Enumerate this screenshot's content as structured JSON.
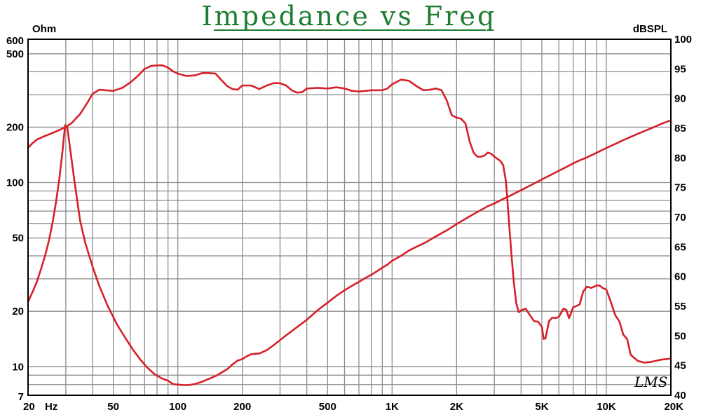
{
  "chart_data": {
    "type": "line",
    "title": "Impedance vs Freq",
    "left_axis_unit": "Ohm",
    "right_axis_unit": "dBSPL",
    "x_unit_label": "Hz",
    "signature": "LMS",
    "xscale": "log",
    "xlim": [
      20,
      20000
    ],
    "x_ticks": [
      {
        "value": 20,
        "label": "20"
      },
      {
        "value": 50,
        "label": "50"
      },
      {
        "value": 100,
        "label": "100"
      },
      {
        "value": 200,
        "label": "200"
      },
      {
        "value": 500,
        "label": "500"
      },
      {
        "value": 1000,
        "label": "1K"
      },
      {
        "value": 2000,
        "label": "2K"
      },
      {
        "value": 5000,
        "label": "5K"
      },
      {
        "value": 10000,
        "label": "10K"
      },
      {
        "value": 20000,
        "label": "20K"
      }
    ],
    "left_scale": "log",
    "left_ylim": [
      7,
      600
    ],
    "left_ticks": [
      600,
      500,
      200,
      100,
      50,
      20,
      10,
      7
    ],
    "right_ylim": [
      40,
      100
    ],
    "right_ticks": [
      100,
      95,
      90,
      85,
      80,
      75,
      70,
      65,
      60,
      55,
      50,
      45,
      40
    ],
    "grid": true,
    "colors": {
      "curves": "#d6202a",
      "grid": "#8c8c8c",
      "title": "#1e7d32",
      "frame": "#000000"
    },
    "series": [
      {
        "axis": "right",
        "points": [
          [
            20,
            81.7
          ],
          [
            21,
            82.5
          ],
          [
            22,
            83.1
          ],
          [
            24,
            83.7
          ],
          [
            26,
            84.2
          ],
          [
            28,
            84.7
          ],
          [
            30,
            85.2
          ],
          [
            32,
            85.9
          ],
          [
            35,
            87.4
          ],
          [
            38,
            89.4
          ],
          [
            40,
            90.8
          ],
          [
            43,
            91.5
          ],
          [
            46,
            91.4
          ],
          [
            50,
            91.3
          ],
          [
            55,
            91.8
          ],
          [
            60,
            92.7
          ],
          [
            65,
            93.8
          ],
          [
            70,
            95.0
          ],
          [
            75,
            95.5
          ],
          [
            80,
            95.6
          ],
          [
            85,
            95.6
          ],
          [
            90,
            95.2
          ],
          [
            95,
            94.6
          ],
          [
            100,
            94.2
          ],
          [
            110,
            93.8
          ],
          [
            120,
            93.9
          ],
          [
            130,
            94.3
          ],
          [
            140,
            94.3
          ],
          [
            150,
            94.2
          ],
          [
            160,
            93.1
          ],
          [
            170,
            92.1
          ],
          [
            180,
            91.6
          ],
          [
            190,
            91.5
          ],
          [
            200,
            92.2
          ],
          [
            220,
            92.2
          ],
          [
            240,
            91.6
          ],
          [
            260,
            92.2
          ],
          [
            280,
            92.6
          ],
          [
            300,
            92.6
          ],
          [
            320,
            92.2
          ],
          [
            340,
            91.4
          ],
          [
            360,
            91.0
          ],
          [
            380,
            91.1
          ],
          [
            400,
            91.7
          ],
          [
            450,
            91.8
          ],
          [
            500,
            91.7
          ],
          [
            550,
            91.9
          ],
          [
            600,
            91.7
          ],
          [
            650,
            91.3
          ],
          [
            700,
            91.2
          ],
          [
            750,
            91.3
          ],
          [
            800,
            91.4
          ],
          [
            900,
            91.4
          ],
          [
            950,
            91.7
          ],
          [
            1000,
            92.4
          ],
          [
            1100,
            93.2
          ],
          [
            1200,
            93.0
          ],
          [
            1300,
            92.1
          ],
          [
            1400,
            91.4
          ],
          [
            1500,
            91.5
          ],
          [
            1600,
            91.7
          ],
          [
            1700,
            91.4
          ],
          [
            1800,
            89.7
          ],
          [
            1900,
            87.2
          ],
          [
            2000,
            86.8
          ],
          [
            2100,
            86.6
          ],
          [
            2200,
            85.8
          ],
          [
            2300,
            82.8
          ],
          [
            2400,
            80.9
          ],
          [
            2500,
            80.2
          ],
          [
            2600,
            80.2
          ],
          [
            2700,
            80.4
          ],
          [
            2800,
            80.9
          ],
          [
            2900,
            80.7
          ],
          [
            3000,
            80.2
          ],
          [
            3200,
            79.5
          ],
          [
            3300,
            78.8
          ],
          [
            3400,
            76.0
          ],
          [
            3500,
            70.0
          ],
          [
            3600,
            64.0
          ],
          [
            3700,
            59.0
          ],
          [
            3800,
            55.5
          ],
          [
            3900,
            54.0
          ],
          [
            4000,
            54.3
          ],
          [
            4200,
            54.6
          ],
          [
            4400,
            53.5
          ],
          [
            4600,
            52.5
          ],
          [
            4800,
            52.4
          ],
          [
            5000,
            51.5
          ],
          [
            5100,
            49.5
          ],
          [
            5200,
            49.6
          ],
          [
            5400,
            52.5
          ],
          [
            5600,
            53.1
          ],
          [
            5800,
            53.0
          ],
          [
            6000,
            53.2
          ],
          [
            6300,
            54.6
          ],
          [
            6500,
            54.4
          ],
          [
            6700,
            53.0
          ],
          [
            7000,
            54.8
          ],
          [
            7500,
            55.3
          ],
          [
            7800,
            57.5
          ],
          [
            8100,
            58.3
          ],
          [
            8500,
            58.1
          ],
          [
            9000,
            58.5
          ],
          [
            9300,
            58.5
          ],
          [
            9600,
            58.1
          ],
          [
            10000,
            57.8
          ],
          [
            10500,
            55.7
          ],
          [
            11000,
            53.5
          ],
          [
            11500,
            52.5
          ],
          [
            12000,
            50.2
          ],
          [
            12500,
            49.5
          ],
          [
            13000,
            46.8
          ],
          [
            14000,
            45.8
          ],
          [
            15000,
            45.5
          ],
          [
            16000,
            45.6
          ],
          [
            17000,
            45.8
          ],
          [
            18000,
            46.0
          ],
          [
            19000,
            46.1
          ],
          [
            20000,
            46.2
          ]
        ]
      },
      {
        "axis": "left",
        "points": [
          [
            20,
            22.5
          ],
          [
            21,
            25.5
          ],
          [
            22,
            29
          ],
          [
            23,
            34
          ],
          [
            24,
            40
          ],
          [
            25,
            48
          ],
          [
            26,
            60
          ],
          [
            27,
            78
          ],
          [
            28,
            105
          ],
          [
            29,
            150
          ],
          [
            29.8,
            205
          ],
          [
            30.5,
            200
          ],
          [
            31.5,
            150
          ],
          [
            33,
            100
          ],
          [
            35,
            62
          ],
          [
            37,
            47
          ],
          [
            40,
            35
          ],
          [
            43,
            27.5
          ],
          [
            47,
            21.5
          ],
          [
            52,
            17
          ],
          [
            57,
            14.3
          ],
          [
            62,
            12.3
          ],
          [
            67,
            10.9
          ],
          [
            72,
            9.9
          ],
          [
            78,
            9.1
          ],
          [
            85,
            8.6
          ],
          [
            90,
            8.4
          ],
          [
            95,
            8.05
          ],
          [
            100,
            8.0
          ],
          [
            107,
            7.95
          ],
          [
            112,
            7.95
          ],
          [
            120,
            8.05
          ],
          [
            130,
            8.3
          ],
          [
            140,
            8.6
          ],
          [
            150,
            8.9
          ],
          [
            160,
            9.3
          ],
          [
            170,
            9.7
          ],
          [
            180,
            10.3
          ],
          [
            190,
            10.8
          ],
          [
            200,
            11.0
          ],
          [
            210,
            11.4
          ],
          [
            220,
            11.7
          ],
          [
            240,
            11.8
          ],
          [
            260,
            12.3
          ],
          [
            280,
            13.1
          ],
          [
            320,
            14.8
          ],
          [
            360,
            16.4
          ],
          [
            400,
            18.0
          ],
          [
            450,
            20.3
          ],
          [
            500,
            22.3
          ],
          [
            550,
            24.3
          ],
          [
            600,
            26.0
          ],
          [
            650,
            27.5
          ],
          [
            700,
            28.9
          ],
          [
            750,
            30.3
          ],
          [
            800,
            31.6
          ],
          [
            850,
            33.0
          ],
          [
            900,
            34.5
          ],
          [
            950,
            35.8
          ],
          [
            1000,
            37.6
          ],
          [
            1100,
            40.0
          ],
          [
            1200,
            42.8
          ],
          [
            1300,
            44.8
          ],
          [
            1400,
            46.6
          ],
          [
            1500,
            48.8
          ],
          [
            1600,
            51.0
          ],
          [
            1800,
            55.0
          ],
          [
            2000,
            59.5
          ],
          [
            2200,
            63.5
          ],
          [
            2400,
            67.4
          ],
          [
            2600,
            71.0
          ],
          [
            2800,
            74.5
          ],
          [
            3000,
            77.0
          ],
          [
            3300,
            81.5
          ],
          [
            3600,
            85.5
          ],
          [
            4000,
            91.0
          ],
          [
            4500,
            97.5
          ],
          [
            5000,
            104
          ],
          [
            5500,
            110
          ],
          [
            6000,
            116
          ],
          [
            6500,
            121.5
          ],
          [
            7000,
            127
          ],
          [
            7500,
            132
          ],
          [
            8000,
            136
          ],
          [
            9000,
            145
          ],
          [
            10000,
            154
          ],
          [
            11000,
            162
          ],
          [
            12000,
            170
          ],
          [
            13000,
            177
          ],
          [
            14000,
            184
          ],
          [
            15000,
            190
          ],
          [
            16000,
            196
          ],
          [
            17000,
            202
          ],
          [
            18000,
            208
          ],
          [
            19000,
            213
          ],
          [
            20000,
            218
          ]
        ]
      }
    ]
  }
}
